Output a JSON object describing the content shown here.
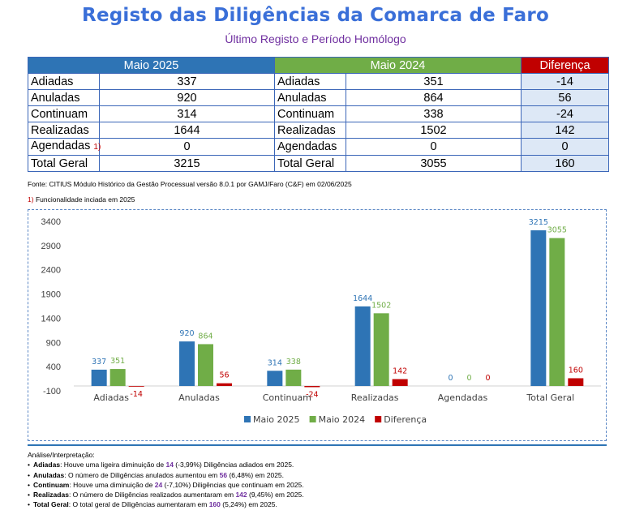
{
  "header": {
    "title": "Registo das Diligências da Comarca de Faro",
    "subtitle": "Último Registo e Período Homólogo"
  },
  "table": {
    "col_2025": "Maio 2025",
    "col_2024": "Maio 2024",
    "col_dif": "Diferença",
    "rows": [
      {
        "label": "Adiadas",
        "v2025": "337",
        "v2024": "351",
        "dif": "-14",
        "mark": ""
      },
      {
        "label": "Anuladas",
        "v2025": "920",
        "v2024": "864",
        "dif": "56",
        "mark": ""
      },
      {
        "label": "Continuam",
        "v2025": "314",
        "v2024": "338",
        "dif": "-24",
        "mark": ""
      },
      {
        "label": "Realizadas",
        "v2025": "1644",
        "v2024": "1502",
        "dif": "142",
        "mark": ""
      },
      {
        "label": "Agendadas",
        "v2025": "0",
        "v2024": "0",
        "dif": "0",
        "mark": "1)"
      },
      {
        "label": "Total Geral",
        "v2025": "3215",
        "v2024": "3055",
        "dif": "160",
        "mark": ""
      }
    ]
  },
  "source": "Fonte: CITIUS Módulo Histórico da Gestão Processual versão 8.0.1 por GAMJ/Faro (C&F) em 02/06/2025",
  "footnote": {
    "num": "1)",
    "text": "Funcionalidade inciada em 2025"
  },
  "chart_data": {
    "type": "bar",
    "categories": [
      "Adiadas",
      "Anuladas",
      "Continuam",
      "Realizadas",
      "Agendadas",
      "Total Geral"
    ],
    "series": [
      {
        "name": "Maio 2025",
        "values": [
          337,
          920,
          314,
          1644,
          0,
          3215
        ],
        "color": "#2e74b5",
        "label_color": "#2e74b5"
      },
      {
        "name": "Maio 2024",
        "values": [
          351,
          864,
          338,
          1502,
          0,
          3055
        ],
        "color": "#70ad47",
        "label_color": "#70ad47"
      },
      {
        "name": "Diferença",
        "values": [
          -14,
          56,
          -24,
          142,
          0,
          160
        ],
        "color": "#c00000",
        "label_color": "#c00000"
      }
    ],
    "yticks": [
      3400,
      2900,
      2400,
      1900,
      1400,
      900,
      400,
      -100
    ],
    "ylim": [
      -100,
      3400
    ],
    "grid": false,
    "legend": "bottom"
  },
  "analysis": {
    "title": "Análise/Interpretação:",
    "items": [
      {
        "label": "Adiadas",
        "pre": ": Houve uma ligeira diminuição de ",
        "num": "14",
        "post": " (-3,99%) Diligências adiados em 2025."
      },
      {
        "label": "Anuladas",
        "pre": ": O número de Diligências anulados aumentou em ",
        "num": "56",
        "post": " (6,48%) em 2025."
      },
      {
        "label": "Continuam",
        "pre": ": Houve uma diminuição de ",
        "num": "24",
        "post": " (-7,10%) Diligências que continuam em 2025."
      },
      {
        "label": "Realizadas",
        "pre": ": O número de Diligências realizados aumentaram em ",
        "num": "142",
        "post": " (9,45%) em 2025."
      },
      {
        "label": "Total Geral",
        "pre": ": O total geral de Diligências aumentaram em ",
        "num": "160",
        "post": " (5,24%) em 2025."
      }
    ]
  }
}
